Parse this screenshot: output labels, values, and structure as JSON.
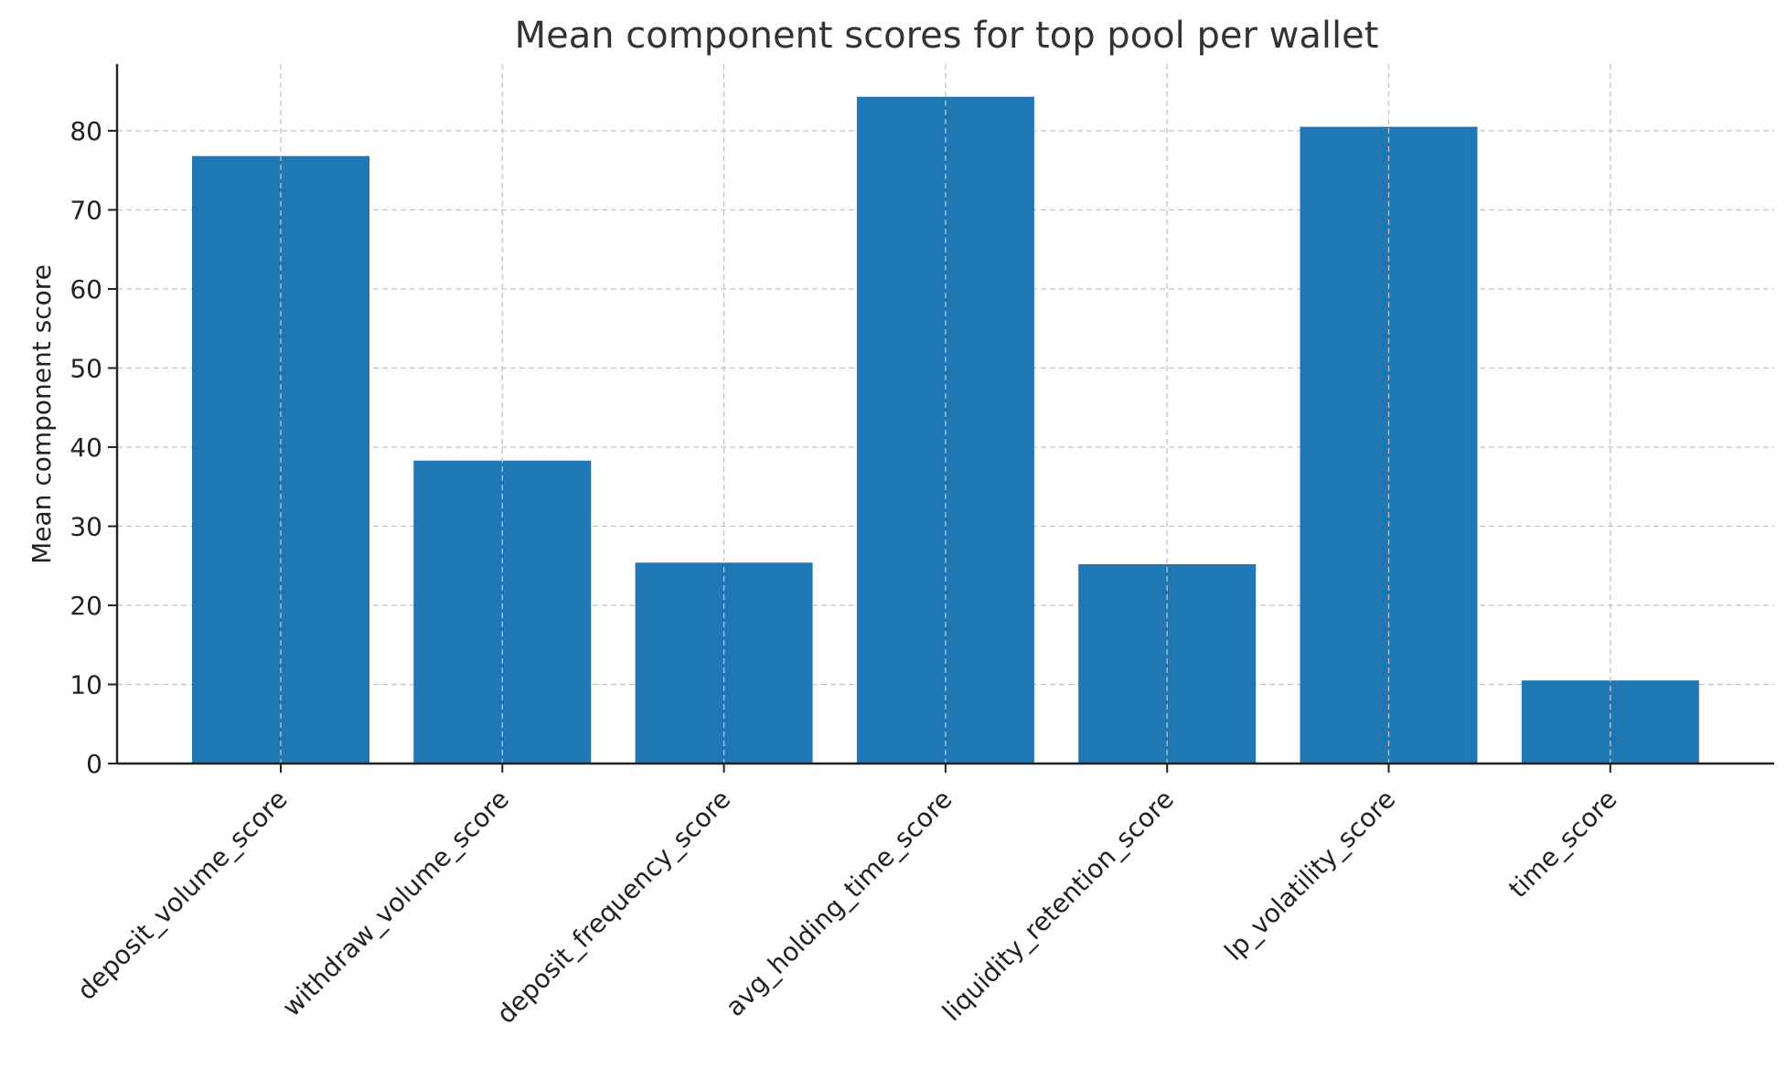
{
  "chart_data": {
    "type": "bar",
    "title": "Mean component scores for top pool per wallet",
    "xlabel": "",
    "ylabel": "Mean component score",
    "categories": [
      "deposit_volume_score",
      "withdraw_volume_score",
      "deposit_frequency_score",
      "avg_holding_time_score",
      "liquidity_retention_score",
      "lp_volatility_score",
      "time_score"
    ],
    "values": [
      76.8,
      38.3,
      25.4,
      84.3,
      25.2,
      80.5,
      10.5
    ],
    "ylim": [
      0,
      88.5
    ],
    "yticks": [
      0,
      10,
      20,
      30,
      40,
      50,
      60,
      70,
      80
    ],
    "grid": true,
    "legend": "none",
    "colors": {
      "bar": "#1f77b4"
    }
  }
}
